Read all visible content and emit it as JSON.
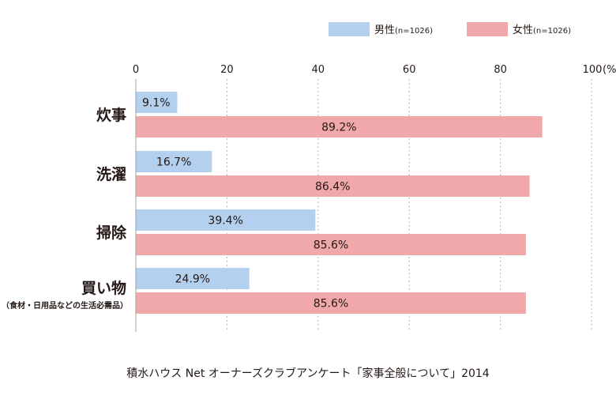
{
  "chart_data": {
    "type": "bar",
    "orientation": "horizontal",
    "title": "",
    "xlabel": "",
    "ylabel": "",
    "xlim": [
      0,
      100
    ],
    "x_ticks": [
      "0",
      "20",
      "40",
      "60",
      "80",
      "100"
    ],
    "unit_label": "(%)",
    "grid": true,
    "legend_position": "top-right",
    "categories": [
      {
        "label": "炊事",
        "sublabel": ""
      },
      {
        "label": "洗濯",
        "sublabel": ""
      },
      {
        "label": "掃除",
        "sublabel": ""
      },
      {
        "label": "買い物",
        "sublabel": "（食材・日用品などの生活必需品）"
      }
    ],
    "series": [
      {
        "name": "男性",
        "n_label": "(n=1026)",
        "color": "#b3d1ef",
        "values": [
          9.1,
          16.7,
          39.4,
          24.9
        ],
        "value_labels": [
          "9.1%",
          "16.7%",
          "39.4%",
          "24.9%"
        ]
      },
      {
        "name": "女性",
        "n_label": "(n=1026)",
        "color": "#f0a8ab",
        "values": [
          89.2,
          86.4,
          85.6,
          85.6
        ],
        "value_labels": [
          "89.2%",
          "86.4%",
          "85.6%",
          "85.6%"
        ]
      }
    ]
  },
  "source": "積水ハウス Net オーナーズクラブアンケート「家事全般について」2014"
}
